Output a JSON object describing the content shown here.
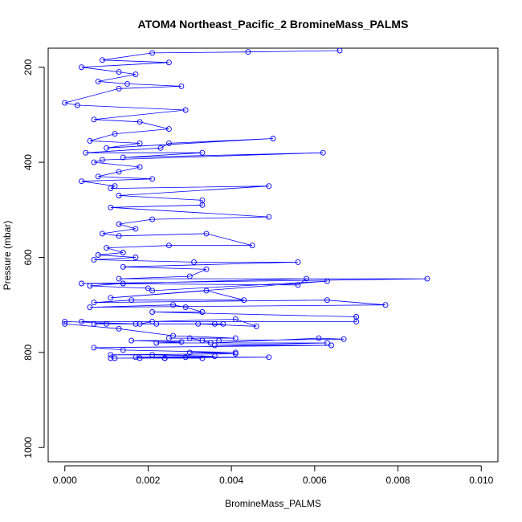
{
  "chart_data": {
    "type": "line",
    "title": "ATOM4 Northeast_Pacific_2 BromineMass_PALMS",
    "xlabel": "BromineMass_PALMS",
    "ylabel": "Pressure (mbar)",
    "xlim": [
      -0.0004,
      0.0104
    ],
    "ylim": [
      1030,
      160
    ],
    "y_reversed": true,
    "x_ticks": [
      0.0,
      0.002,
      0.004,
      0.006,
      0.008,
      0.01
    ],
    "x_tick_labels": [
      "0.000",
      "0.002",
      "0.004",
      "0.006",
      "0.008",
      "0.010"
    ],
    "y_ticks": [
      200,
      400,
      600,
      800,
      1000
    ],
    "y_tick_labels": [
      "200",
      "400",
      "600",
      "800",
      "1000"
    ],
    "grid": false,
    "legend": "none",
    "color": "#0000ff",
    "marker": "open-circle",
    "series": [
      {
        "x": [
          0.0066,
          0.0044,
          0.0021,
          0.0009,
          0.0025,
          0.0004,
          0.0013,
          0.0017,
          0.0008,
          0.0015,
          0.0028,
          0.0013,
          0.0,
          0.0003,
          0.0029,
          0.0007,
          0.0018,
          0.0025,
          0.0012,
          0.0006,
          0.0018,
          0.001,
          0.005,
          0.0025,
          0.0023,
          0.0005,
          0.0033,
          0.0014,
          0.0062,
          0.0009,
          0.0007,
          0.0018,
          0.0013,
          0.0008,
          0.0021,
          0.0004,
          0.0012,
          0.0011,
          0.0049,
          0.0013,
          0.0033,
          0.0033,
          0.0011,
          0.0049,
          0.0021,
          0.0013,
          0.0017,
          0.0009,
          0.0013,
          0.0034,
          0.0045,
          0.0025,
          0.001,
          0.0014,
          0.0008,
          0.0017,
          0.0007,
          0.0031,
          0.0056,
          0.0014,
          0.0034,
          0.003,
          0.0013,
          0.0087,
          0.0004,
          0.0056,
          0.0058,
          0.0014,
          0.0006,
          0.002,
          0.0021,
          0.0063,
          0.0011,
          0.0034,
          0.0043,
          0.0016,
          0.0007,
          0.0063,
          0.0077,
          0.0006,
          0.0026,
          0.0029,
          0.0033,
          0.0021,
          0.007,
          0.007,
          0.0004,
          0.001,
          0.0022,
          0.0032,
          0.0046,
          0.0041,
          0.0021,
          0.0018,
          0.0036,
          0.0007,
          0.0038,
          0.0017,
          0.0,
          0.0,
          0.0013,
          0.0026,
          0.0041,
          0.0025,
          0.003,
          0.0033,
          0.0035,
          0.0061,
          0.0067,
          0.0037,
          0.0016,
          0.0028,
          0.0022,
          0.0063,
          0.0036,
          0.0064,
          0.0007,
          0.0014,
          0.0041,
          0.003,
          0.0041,
          0.0011,
          0.0021,
          0.0036,
          0.0017,
          0.0029,
          0.0049,
          0.0012,
          0.0024,
          0.0018,
          0.0033,
          0.0024,
          0.0011
        ],
        "y": [
          165,
          168,
          170,
          185,
          190,
          200,
          210,
          215,
          230,
          235,
          240,
          245,
          275,
          280,
          290,
          310,
          315,
          330,
          340,
          355,
          360,
          370,
          350,
          360,
          370,
          380,
          380,
          390,
          380,
          395,
          400,
          410,
          420,
          430,
          435,
          440,
          450,
          455,
          450,
          470,
          480,
          490,
          495,
          515,
          520,
          530,
          540,
          550,
          555,
          550,
          575,
          575,
          580,
          590,
          595,
          600,
          605,
          610,
          610,
          620,
          625,
          640,
          645,
          645,
          655,
          658,
          645,
          655,
          660,
          665,
          670,
          650,
          685,
          670,
          690,
          690,
          695,
          690,
          700,
          705,
          700,
          705,
          715,
          715,
          725,
          735,
          735,
          740,
          740,
          740,
          745,
          730,
          735,
          740,
          740,
          740,
          740,
          740,
          735,
          740,
          750,
          765,
          770,
          770,
          770,
          775,
          780,
          770,
          772,
          775,
          775,
          778,
          780,
          780,
          785,
          785,
          790,
          795,
          800,
          800,
          803,
          805,
          805,
          808,
          810,
          810,
          810,
          812,
          812,
          812,
          812,
          812,
          812
        ]
      }
    ]
  }
}
